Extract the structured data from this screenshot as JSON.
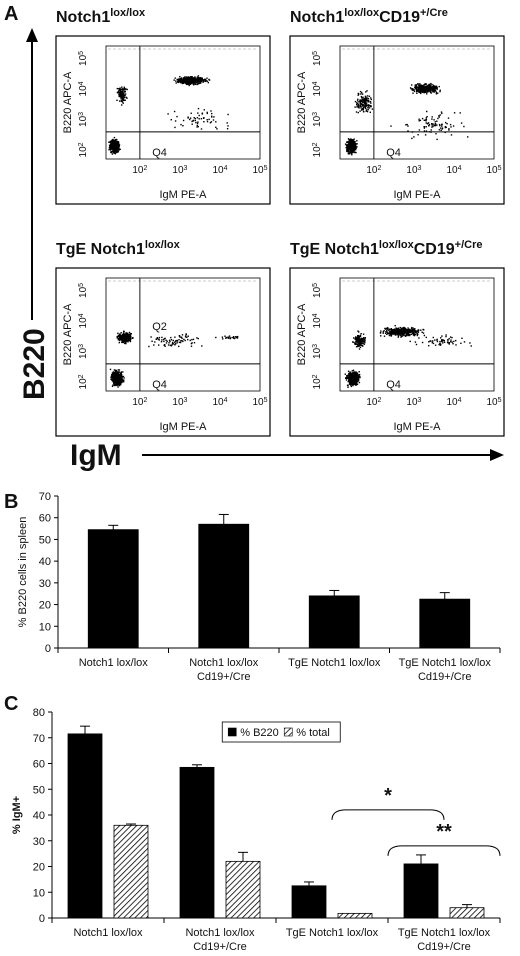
{
  "panel_labels": {
    "a": "A",
    "b": "B",
    "c": "C"
  },
  "panel_a": {
    "y_axis_label": "B220",
    "x_axis_label": "IgM",
    "plots": [
      {
        "title_main": "Notch1",
        "title_sup": "lox/lox",
        "title_tail": "",
        "title_tail_sup": "",
        "quadrants": [
          "Q4"
        ],
        "ylabel": "B220 APC-A",
        "xlabel": "IgM PE-A",
        "xticks": [
          "10",
          "10",
          "10",
          "10",
          "10"
        ],
        "xtick_exps": [
          "2",
          "3",
          "4",
          "5"
        ],
        "yticks": [
          "10",
          "10",
          "10",
          "10"
        ],
        "ytick_exps": [
          "2",
          "3",
          "4",
          "5"
        ]
      },
      {
        "title_main": "Notch1",
        "title_sup": "lox/lox",
        "title_tail": "CD19",
        "title_tail_sup": "+/Cre",
        "quadrants": [
          "Q4"
        ],
        "ylabel": "B220 APC-A",
        "xlabel": "IgM PE-A",
        "xticks": [
          "10",
          "10",
          "10",
          "10",
          "10"
        ],
        "xtick_exps": [
          "2",
          "3",
          "4",
          "5"
        ],
        "yticks": [
          "10",
          "10",
          "10",
          "10"
        ],
        "ytick_exps": [
          "2",
          "3",
          "4",
          "5"
        ]
      },
      {
        "title_main": "TgE Notch1",
        "title_sup": "lox/lox",
        "title_tail": "",
        "title_tail_sup": "",
        "quadrants": [
          "Q2",
          "Q4"
        ],
        "ylabel": "B220 APC-A",
        "xlabel": "IgM PE-A",
        "xticks": [
          "10",
          "10",
          "10",
          "10",
          "10"
        ],
        "xtick_exps": [
          "2",
          "3",
          "4",
          "5"
        ],
        "yticks": [
          "10",
          "10",
          "10",
          "10"
        ],
        "ytick_exps": [
          "2",
          "3",
          "4",
          "5"
        ]
      },
      {
        "title_main": "TgE Notch1",
        "title_sup": "lox/lox",
        "title_tail": "CD19",
        "title_tail_sup": "+/Cre",
        "quadrants": [
          "Q4"
        ],
        "ylabel": "B220 APC-A",
        "xlabel": "IgM PE-A",
        "xticks": [
          "10",
          "10",
          "10",
          "10",
          "10"
        ],
        "xtick_exps": [
          "2",
          "3",
          "4",
          "5"
        ],
        "yticks": [
          "10",
          "10",
          "10",
          "10"
        ],
        "ytick_exps": [
          "2",
          "3",
          "4",
          "5"
        ]
      }
    ]
  },
  "chart_data": [
    {
      "type": "bar",
      "title": "",
      "ylabel": "% B220 cells in spleen",
      "ylim": [
        0,
        70
      ],
      "yticks": [
        0,
        10,
        20,
        30,
        40,
        50,
        60,
        70
      ],
      "categories": [
        [
          "Notch1 lox/lox"
        ],
        [
          "Notch1 lox/lox",
          "Cd19+/Cre"
        ],
        [
          "TgE Notch1 lox/lox"
        ],
        [
          "TgE Notch1 lox/lox",
          "Cd19+/Cre"
        ]
      ],
      "series": [
        {
          "values": [
            54.5,
            57,
            24,
            22.5
          ],
          "errors": [
            2,
            4.5,
            2.5,
            3
          ],
          "color": "#000000"
        }
      ]
    },
    {
      "type": "bar",
      "title": "",
      "ylabel": "% IgM+",
      "ylim": [
        0,
        80
      ],
      "yticks": [
        0,
        10,
        20,
        30,
        40,
        50,
        60,
        70,
        80
      ],
      "categories": [
        [
          "Notch1 lox/lox"
        ],
        [
          "Notch1 lox/lox",
          "Cd19+/Cre"
        ],
        [
          "TgE Notch1 lox/lox"
        ],
        [
          "TgE Notch1 lox/lox",
          "Cd19+/Cre"
        ]
      ],
      "series": [
        {
          "name": "% B220",
          "values": [
            71.5,
            58.5,
            12.5,
            21
          ],
          "errors": [
            3,
            1,
            1.5,
            3.5
          ],
          "color": "#000000",
          "pattern": "solid"
        },
        {
          "name": "% total",
          "values": [
            36,
            22,
            1.8,
            4
          ],
          "errors": [
            0.5,
            3.5,
            0,
            1.2
          ],
          "color": "#ffffff",
          "pattern": "hatch"
        }
      ],
      "legend": "top-center",
      "annotations": [
        {
          "text": "*",
          "from": 2,
          "to": 3,
          "at_value": 42
        },
        {
          "text": "**",
          "from": 2.5,
          "to": 3.5,
          "at_value": 28
        }
      ]
    }
  ]
}
